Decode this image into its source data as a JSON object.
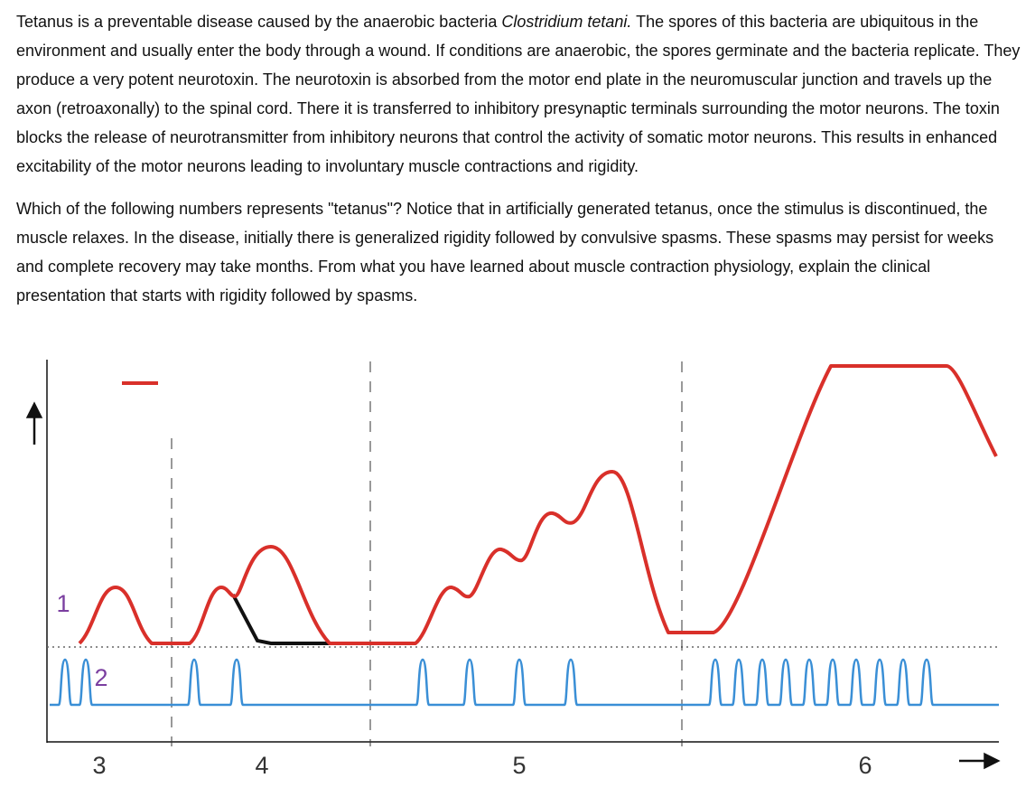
{
  "paragraphs": [
    {
      "before": "Tetanus is a preventable disease caused by the anaerobic bacteria ",
      "italic": "Clostridium tetani.",
      "after": "  The spores of this bacteria are ubiquitous in the environment and usually enter the body through a wound.  If conditions are anaerobic, the spores germinate and the bacteria replicate.  They produce a very potent neurotoxin.  The neurotoxin is absorbed from the motor end plate in the neuromuscular junction and travels up the axon (retroaxonally) to the spinal cord.   There it is transferred to inhibitory presynaptic terminals surrounding the motor neurons.  The toxin blocks the release of neurotransmitter from inhibitory neurons that control the activity of somatic motor neurons.  This results in enhanced excitability of the motor neurons leading to involuntary muscle contractions and rigidity."
    },
    {
      "text": "Which of the following numbers represents \"tetanus\"? Notice that in artificially generated tetanus, once the stimulus is discontinued, the muscle relaxes.  In the disease, initially there is generalized rigidity followed by convulsive spasms.  These spasms may persist for weeks and complete recovery may take months.  From what you have learned about muscle contraction physiology, explain the clinical presentation that starts with rigidity followed by spasms."
    }
  ],
  "figure": {
    "labels": [
      "1",
      "2",
      "3",
      "4",
      "5",
      "6"
    ]
  }
}
